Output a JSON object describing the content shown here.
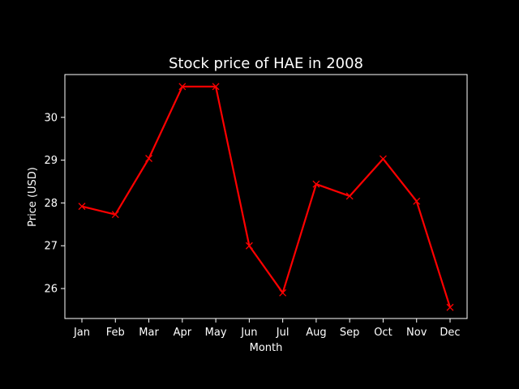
{
  "chart_data": {
    "type": "line",
    "title": "Stock price of HAE in 2008",
    "xlabel": "Month",
    "ylabel": "Price (USD)",
    "categories": [
      "Jan",
      "Feb",
      "Mar",
      "Apr",
      "May",
      "Jun",
      "Jul",
      "Aug",
      "Sep",
      "Oct",
      "Nov",
      "Dec"
    ],
    "series": [
      {
        "values": [
          27.92,
          27.73,
          29.04,
          30.72,
          30.72,
          27.0,
          25.9,
          28.44,
          28.16,
          29.03,
          28.04,
          25.56
        ]
      }
    ],
    "ylim": [
      25.3,
      31.0
    ],
    "yticks": [
      26,
      27,
      28,
      29,
      30
    ],
    "grid": false,
    "line_color": "#ff0000",
    "marker": "x",
    "background": "#000000",
    "foreground": "#ffffff"
  }
}
